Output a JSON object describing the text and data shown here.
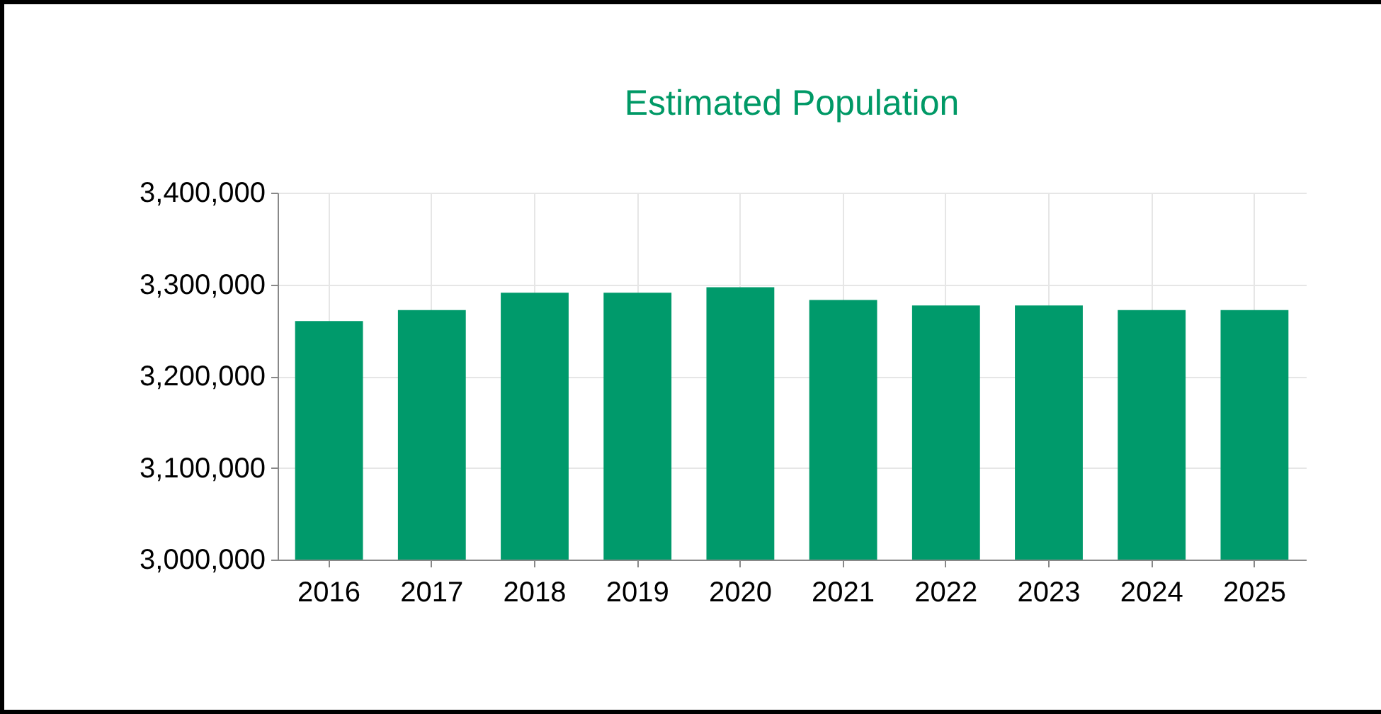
{
  "chart_data": {
    "type": "bar",
    "title": "Estimated Population",
    "categories": [
      "2016",
      "2017",
      "2018",
      "2019",
      "2020",
      "2021",
      "2022",
      "2023",
      "2024",
      "2025"
    ],
    "values": [
      3260000,
      3272000,
      3291000,
      3291000,
      3297000,
      3283000,
      3277000,
      3277000,
      3272000,
      3272000
    ],
    "color": "#009a6b",
    "ylim": [
      3000000,
      3400000
    ],
    "yticks": [
      {
        "value": 3000000,
        "label": "3,000,000"
      },
      {
        "value": 3100000,
        "label": "3,100,000"
      },
      {
        "value": 3200000,
        "label": "3,200,000"
      },
      {
        "value": 3300000,
        "label": "3,300,000"
      },
      {
        "value": 3400000,
        "label": "3,400,000"
      }
    ],
    "grid": true
  }
}
